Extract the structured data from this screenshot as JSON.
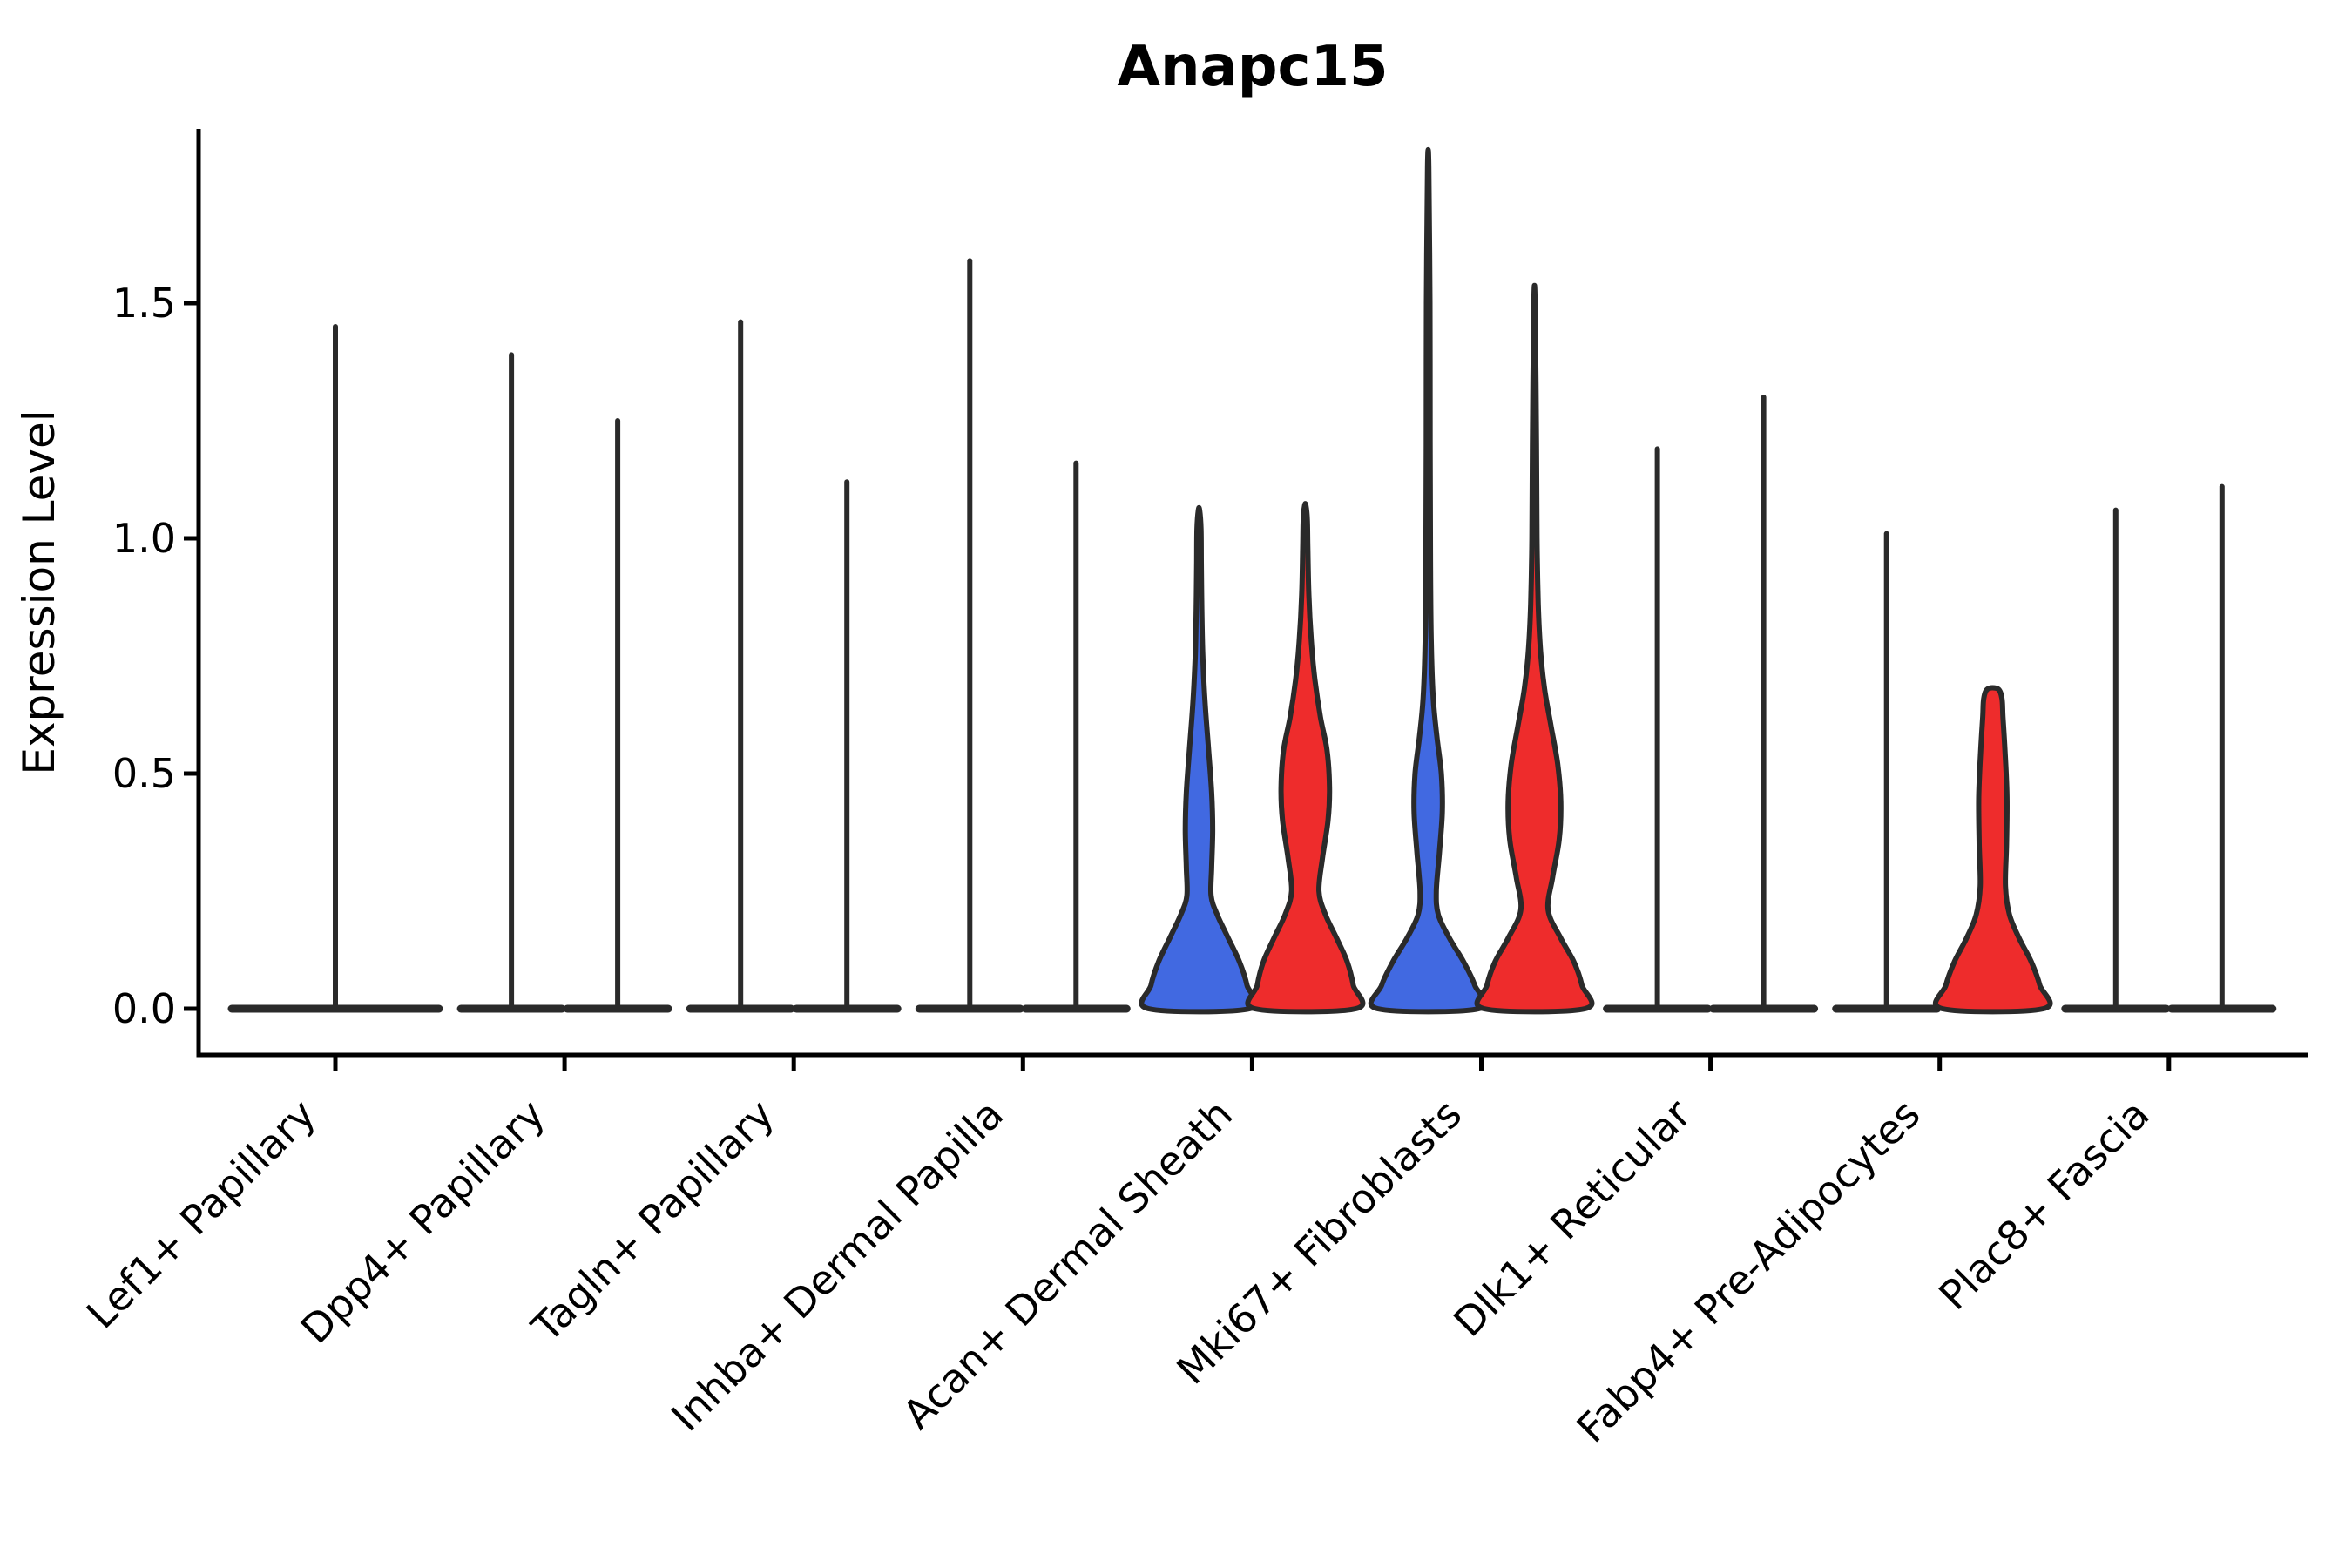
{
  "chart_data": {
    "type": "violin",
    "title": "Anapc15",
    "ylabel": "Expression Level",
    "xlabel": "",
    "yticks": [
      0.0,
      0.5,
      1.0,
      1.5
    ],
    "ylim": [
      -0.06,
      1.87
    ],
    "grid": false,
    "legend": "none",
    "colors": {
      "condition_a": "#4169E1",
      "condition_b": "#EE2C2C",
      "outline": "#2A2A2A",
      "axis": "#000000"
    },
    "categories": [
      "Lef1+ Papillary",
      "Dpp4+ Papillary",
      "Tagln+ Papillary",
      "Inhba+ Dermal Papilla",
      "Acan+ Dermal Sheath",
      "Mki67+ Fibroblasts",
      "Dlk1+ Reticular",
      "Fabp4+ Pre-Adipocytes",
      "Plac8+ Fascia"
    ],
    "violins": [
      {
        "category": "Lef1+ Papillary",
        "items": [
          {
            "style": "flat_spike",
            "slot": "full",
            "fill": "none",
            "max": 1.45
          }
        ]
      },
      {
        "category": "Dpp4+ Papillary",
        "items": [
          {
            "style": "flat_spike",
            "slot": "left",
            "fill": "none",
            "max": 1.39
          },
          {
            "style": "flat_spike",
            "slot": "right",
            "fill": "none",
            "max": 1.25
          }
        ]
      },
      {
        "category": "Tagln+ Papillary",
        "items": [
          {
            "style": "flat_spike",
            "slot": "left",
            "fill": "none",
            "max": 1.46
          },
          {
            "style": "flat_spike",
            "slot": "right",
            "fill": "none",
            "max": 1.12
          }
        ]
      },
      {
        "category": "Inhba+ Dermal Papilla",
        "items": [
          {
            "style": "flat_spike",
            "slot": "left",
            "fill": "none",
            "max": 1.59
          },
          {
            "style": "flat_spike",
            "slot": "right",
            "fill": "none",
            "max": 1.16
          }
        ]
      },
      {
        "category": "Acan+ Dermal Sheath",
        "items": [
          {
            "style": "violin",
            "slot": "left",
            "fill": "condition_a",
            "max": 1.06,
            "profile": [
              [
                0,
                1.0
              ],
              [
                0.05,
                0.95
              ],
              [
                0.1,
                0.8
              ],
              [
                0.15,
                0.58
              ],
              [
                0.2,
                0.36
              ],
              [
                0.24,
                0.24
              ],
              [
                0.3,
                0.25
              ],
              [
                0.38,
                0.27
              ],
              [
                0.46,
                0.25
              ],
              [
                0.55,
                0.19
              ],
              [
                0.65,
                0.12
              ],
              [
                0.75,
                0.075
              ],
              [
                0.85,
                0.055
              ],
              [
                0.95,
                0.045
              ],
              [
                1.02,
                0.04
              ],
              [
                1.06,
                0.012
              ]
            ]
          },
          {
            "style": "violin",
            "slot": "right",
            "fill": "condition_b",
            "max": 1.07,
            "profile": [
              [
                0,
                1.0
              ],
              [
                0.05,
                0.95
              ],
              [
                0.1,
                0.83
              ],
              [
                0.15,
                0.62
              ],
              [
                0.2,
                0.4
              ],
              [
                0.25,
                0.27
              ],
              [
                0.32,
                0.34
              ],
              [
                0.4,
                0.45
              ],
              [
                0.47,
                0.48
              ],
              [
                0.55,
                0.43
              ],
              [
                0.62,
                0.3
              ],
              [
                0.7,
                0.19
              ],
              [
                0.78,
                0.12
              ],
              [
                0.88,
                0.07
              ],
              [
                0.98,
                0.05
              ],
              [
                1.04,
                0.04
              ],
              [
                1.07,
                0.012
              ]
            ]
          }
        ]
      },
      {
        "category": "Mki67+ Fibroblasts",
        "items": [
          {
            "style": "violin",
            "slot": "left",
            "fill": "condition_a",
            "max": 1.79,
            "profile": [
              [
                0,
                1.0
              ],
              [
                0.05,
                0.92
              ],
              [
                0.1,
                0.7
              ],
              [
                0.15,
                0.42
              ],
              [
                0.2,
                0.2
              ],
              [
                0.25,
                0.16
              ],
              [
                0.33,
                0.22
              ],
              [
                0.42,
                0.28
              ],
              [
                0.5,
                0.26
              ],
              [
                0.58,
                0.17
              ],
              [
                0.66,
                0.1
              ],
              [
                0.78,
                0.06
              ],
              [
                0.95,
                0.045
              ],
              [
                1.2,
                0.038
              ],
              [
                1.5,
                0.034
              ],
              [
                1.79,
                0.012
              ]
            ]
          },
          {
            "style": "violin",
            "slot": "right",
            "fill": "condition_b",
            "max": 1.5,
            "profile": [
              [
                0,
                1.0
              ],
              [
                0.05,
                0.94
              ],
              [
                0.1,
                0.78
              ],
              [
                0.15,
                0.52
              ],
              [
                0.21,
                0.27
              ],
              [
                0.28,
                0.36
              ],
              [
                0.36,
                0.49
              ],
              [
                0.44,
                0.52
              ],
              [
                0.52,
                0.46
              ],
              [
                0.6,
                0.33
              ],
              [
                0.68,
                0.2
              ],
              [
                0.76,
                0.12
              ],
              [
                0.86,
                0.075
              ],
              [
                1.0,
                0.05
              ],
              [
                1.2,
                0.04
              ],
              [
                1.5,
                0.012
              ]
            ]
          }
        ]
      },
      {
        "category": "Dlk1+ Reticular",
        "items": [
          {
            "style": "flat_spike",
            "slot": "left",
            "fill": "none",
            "max": 1.19
          },
          {
            "style": "flat_spike",
            "slot": "right",
            "fill": "none",
            "max": 1.3
          }
        ]
      },
      {
        "category": "Fabp4+ Pre-Adipocytes",
        "items": [
          {
            "style": "flat_spike",
            "slot": "left",
            "fill": "none",
            "max": 1.01
          },
          {
            "style": "violin",
            "slot": "right",
            "fill": "condition_b",
            "max": 0.68,
            "profile": [
              [
                0,
                1.0
              ],
              [
                0.05,
                0.93
              ],
              [
                0.1,
                0.76
              ],
              [
                0.15,
                0.52
              ],
              [
                0.2,
                0.33
              ],
              [
                0.26,
                0.25
              ],
              [
                0.35,
                0.27
              ],
              [
                0.45,
                0.28
              ],
              [
                0.55,
                0.24
              ],
              [
                0.62,
                0.2
              ],
              [
                0.66,
                0.18
              ],
              [
                0.68,
                0.1
              ]
            ]
          }
        ]
      },
      {
        "category": "Plac8+ Fascia",
        "items": [
          {
            "style": "flat_spike",
            "slot": "left",
            "fill": "none",
            "max": 1.06
          },
          {
            "style": "flat_spike",
            "slot": "right",
            "fill": "none",
            "max": 1.11
          }
        ]
      }
    ]
  }
}
